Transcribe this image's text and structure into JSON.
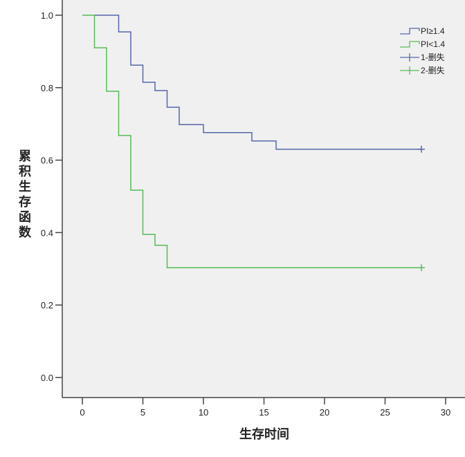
{
  "chart_data": {
    "type": "line",
    "subtype": "kaplan-meier-step",
    "title": "",
    "xlabel": "生存时间",
    "ylabel": "累积生存函数",
    "xlim": [
      -1.7,
      31
    ],
    "ylim": [
      -0.055,
      1.04
    ],
    "xticks": [
      0,
      5,
      10,
      15,
      20,
      25,
      30
    ],
    "xtick_labels": [
      "0",
      "5",
      "10",
      "15",
      "20",
      "25",
      "30"
    ],
    "yticks": [
      0.0,
      0.2,
      0.4,
      0.6,
      0.8,
      1.0
    ],
    "ytick_labels": [
      "0.0",
      "0.2",
      "0.4",
      "0.6",
      "0.8",
      "1.0"
    ],
    "grid": false,
    "legend_position": "top-right",
    "legend": [
      "PI≥1.4",
      "PI<1.4",
      "1-删失",
      "2-删失"
    ],
    "series": [
      {
        "name": "PI≥1.4",
        "color": "#5566aa",
        "steps": [
          [
            1,
            1.0
          ],
          [
            3,
            0.954
          ],
          [
            4,
            0.862
          ],
          [
            5,
            0.815
          ],
          [
            6,
            0.792
          ],
          [
            7,
            0.746
          ],
          [
            8,
            0.698
          ],
          [
            10,
            0.676
          ],
          [
            14,
            0.653
          ],
          [
            16,
            0.63
          ]
        ],
        "end_x": 28,
        "censored": [
          [
            28,
            0.63
          ]
        ]
      },
      {
        "name": "PI<1.4",
        "color": "#55bb55",
        "steps": [
          [
            0,
            1.0
          ],
          [
            1,
            0.91
          ],
          [
            2,
            0.79
          ],
          [
            3,
            0.668
          ],
          [
            4,
            0.517
          ],
          [
            5,
            0.395
          ],
          [
            6,
            0.365
          ],
          [
            7,
            0.303
          ]
        ],
        "end_x": 28,
        "censored": [
          [
            28,
            0.303
          ]
        ]
      }
    ]
  }
}
